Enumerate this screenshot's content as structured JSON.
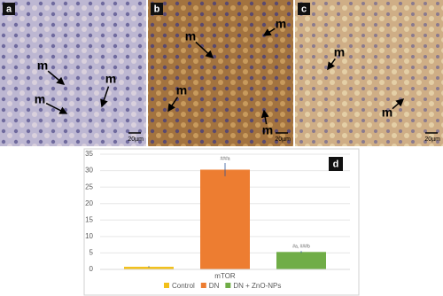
{
  "panels": [
    {
      "label": "a",
      "markers": [
        "m",
        "m",
        "m"
      ],
      "scale": "20µm"
    },
    {
      "label": "b",
      "markers": [
        "m",
        "m",
        "m",
        "m"
      ],
      "scale": "20µm"
    },
    {
      "label": "c",
      "markers": [
        "m",
        "m"
      ],
      "scale": "20µm"
    }
  ],
  "chart_data": {
    "type": "bar",
    "panel_label": "d",
    "categories": [
      "mTOR"
    ],
    "series": [
      {
        "name": "Control",
        "color": "#f2c01a",
        "values": [
          0.8
        ],
        "errors": [
          0.2
        ]
      },
      {
        "name": "DN",
        "color": "#ed7d31",
        "values": [
          30.3
        ],
        "errors": [
          2
        ],
        "annotation": "###a"
      },
      {
        "name": "DN + ZnO-NPs",
        "color": "#70ad47",
        "values": [
          5.3
        ],
        "errors": [
          0.3
        ],
        "annotation": "#a, ###b"
      }
    ],
    "ylim": [
      0,
      35
    ],
    "yticks": [
      0,
      5,
      10,
      15,
      20,
      25,
      30,
      35
    ],
    "grid": true
  }
}
